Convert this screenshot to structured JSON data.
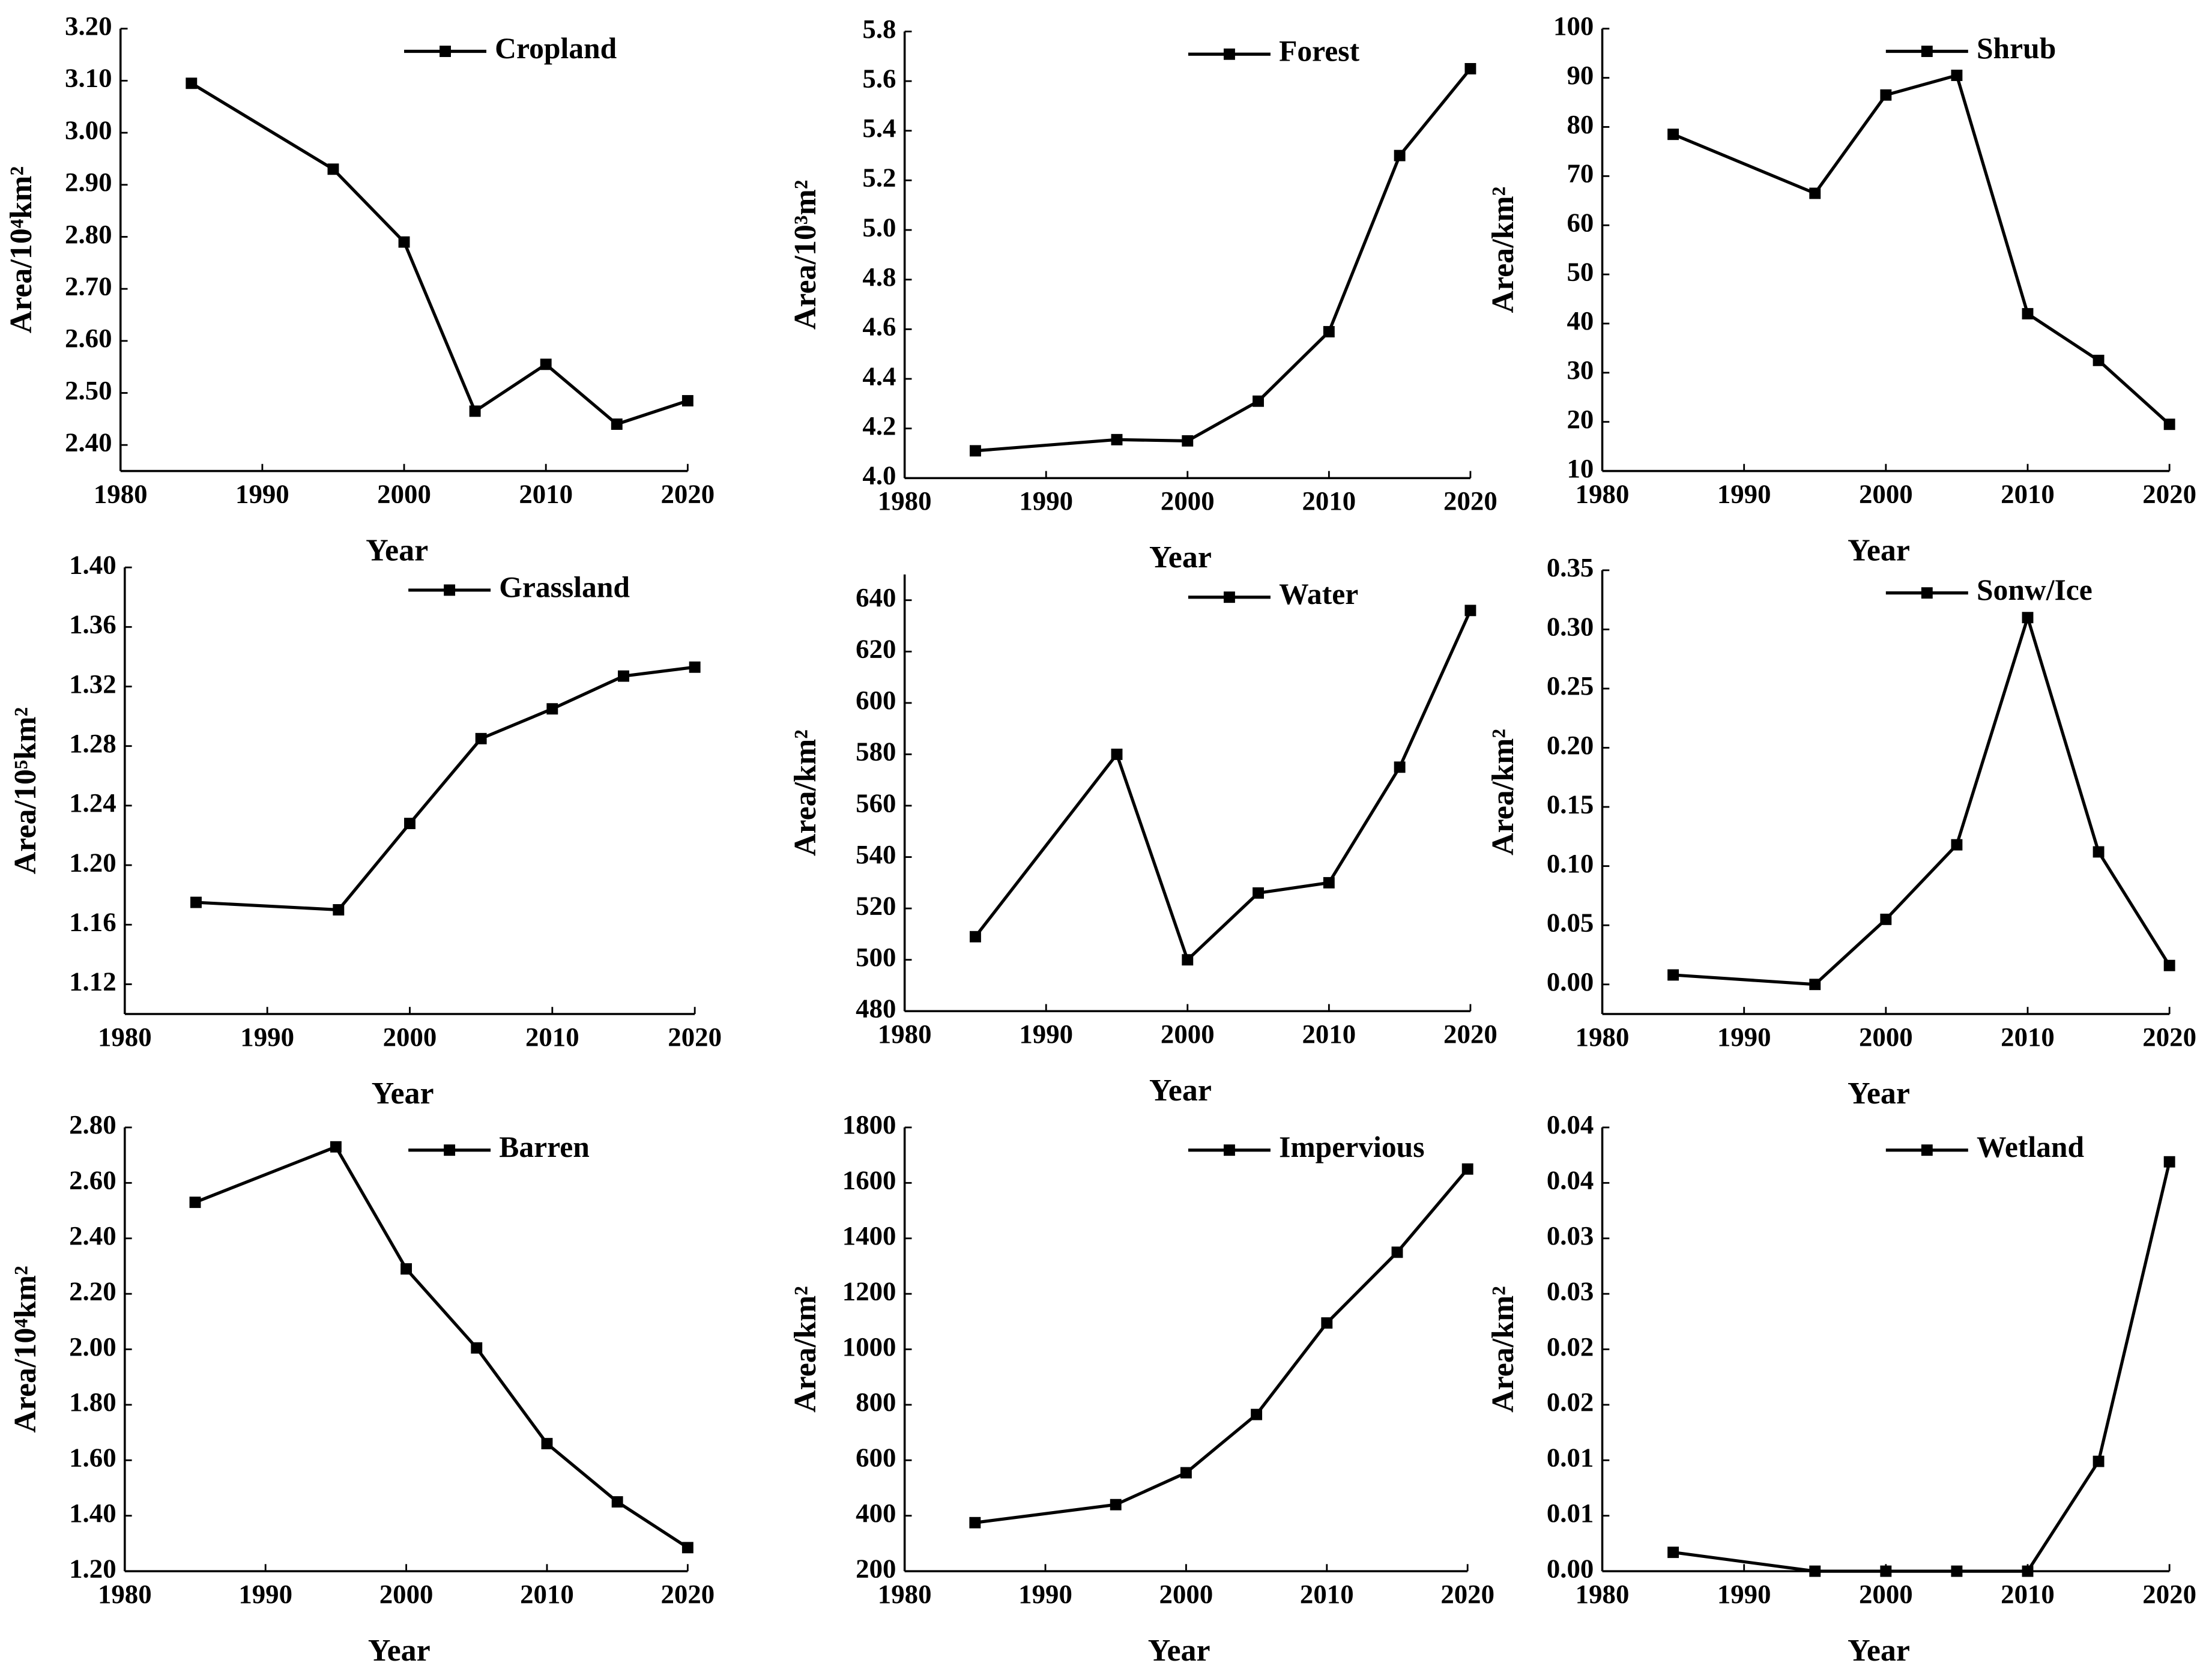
{
  "chart_data": [
    {
      "type": "line",
      "x_label": "Year",
      "y_label": "Area/10⁴km²",
      "x": [
        1985,
        1995,
        2000,
        2005,
        2010,
        2015,
        2020
      ],
      "series": [
        {
          "name": "Cropland",
          "color": "#000000",
          "values": [
            3.095,
            2.93,
            2.79,
            2.465,
            2.555,
            2.44,
            2.485
          ]
        }
      ],
      "xlim": [
        1980,
        2020
      ],
      "xticks": [
        1980,
        1990,
        2000,
        2010,
        2020
      ],
      "ylim": [
        2.35,
        3.2
      ],
      "yticks": [
        {
          "value": 2.4,
          "label": "2.40"
        },
        {
          "value": 2.5,
          "label": "2.50"
        },
        {
          "value": 2.6,
          "label": "2.60"
        },
        {
          "value": 2.7,
          "label": "2.70"
        },
        {
          "value": 2.8,
          "label": "2.80"
        },
        {
          "value": 2.9,
          "label": "2.90"
        },
        {
          "value": 3.0,
          "label": "3.00"
        },
        {
          "value": 3.1,
          "label": "3.10"
        },
        {
          "value": 3.2,
          "label": "3.20"
        }
      ]
    },
    {
      "type": "line",
      "x_label": "Year",
      "y_label": "Area/10³m²",
      "x": [
        1985,
        1995,
        2000,
        2005,
        2010,
        2015,
        2020
      ],
      "series": [
        {
          "name": "Forest",
          "color": "#000000",
          "values": [
            4.11,
            4.155,
            4.15,
            4.31,
            4.59,
            5.3,
            5.65
          ]
        }
      ],
      "xlim": [
        1980,
        2020
      ],
      "xticks": [
        1980,
        1990,
        2000,
        2010,
        2020
      ],
      "ylim": [
        4.0,
        5.8
      ],
      "yticks": [
        {
          "value": 4.0,
          "label": "4.0"
        },
        4.2,
        4.4,
        4.6,
        4.8,
        {
          "value": 5.0,
          "label": "5.0"
        },
        5.2,
        5.4,
        5.6,
        5.8
      ]
    },
    {
      "type": "line",
      "x_label": "Year",
      "y_label": "Area/km²",
      "x": [
        1985,
        1995,
        2000,
        2005,
        2010,
        2015,
        2020
      ],
      "series": [
        {
          "name": "Shrub",
          "color": "#000000",
          "values": [
            78.5,
            66.5,
            86.5,
            90.5,
            42,
            32.5,
            19.5
          ]
        }
      ],
      "xlim": [
        1980,
        2020
      ],
      "xticks": [
        1980,
        1990,
        2000,
        2010,
        2020
      ],
      "ylim": [
        10,
        100
      ],
      "yticks": [
        10,
        20,
        30,
        40,
        50,
        60,
        70,
        80,
        90,
        100
      ]
    },
    {
      "type": "line",
      "x_label": "Year",
      "y_label": "Area/10⁵km²",
      "x": [
        1985,
        1995,
        2000,
        2005,
        2010,
        2015,
        2020
      ],
      "series": [
        {
          "name": "Grassland",
          "color": "#000000",
          "values": [
            1.175,
            1.17,
            1.228,
            1.285,
            1.305,
            1.327,
            1.333
          ]
        }
      ],
      "xlim": [
        1980,
        2020
      ],
      "xticks": [
        1980,
        1990,
        2000,
        2010,
        2020
      ],
      "ylim": [
        1.1,
        1.4
      ],
      "yticks": [
        1.12,
        1.16,
        {
          "value": 1.2,
          "label": "1.20"
        },
        1.24,
        1.28,
        1.32,
        1.36,
        {
          "value": 1.4,
          "label": "1.40"
        }
      ]
    },
    {
      "type": "line",
      "x_label": "Year",
      "y_label": "Area/km²",
      "x": [
        1985,
        1995,
        2000,
        2005,
        2010,
        2015,
        2020
      ],
      "series": [
        {
          "name": "Water",
          "color": "#000000",
          "values": [
            509,
            580,
            500,
            526,
            530,
            575,
            636
          ]
        }
      ],
      "xlim": [
        1980,
        2020
      ],
      "xticks": [
        1980,
        1990,
        2000,
        2010,
        2020
      ],
      "ylim": [
        480,
        650
      ],
      "yticks": [
        480,
        500,
        520,
        540,
        560,
        580,
        600,
        620,
        640
      ]
    },
    {
      "type": "line",
      "x_label": "Year",
      "y_label": "Area/km²",
      "x": [
        1985,
        1995,
        2000,
        2005,
        2010,
        2015,
        2020
      ],
      "series": [
        {
          "name": "Sonw/Ice",
          "color": "#000000",
          "values": [
            0.008,
            0,
            0.055,
            0.118,
            0.31,
            0.112,
            0.016
          ]
        }
      ],
      "xlim": [
        1980,
        2020
      ],
      "xticks": [
        1980,
        1990,
        2000,
        2010,
        2020
      ],
      "ylim": [
        -0.025,
        0.35
      ],
      "yticks": [
        {
          "value": 0,
          "label": "0.00"
        },
        0.05,
        {
          "value": 0.1,
          "label": "0.10"
        },
        0.15,
        {
          "value": 0.2,
          "label": "0.20"
        },
        0.25,
        {
          "value": 0.3,
          "label": "0.30"
        },
        0.35
      ]
    },
    {
      "type": "line",
      "x_label": "Year",
      "y_label": "Area/10⁴km²",
      "x": [
        1985,
        1995,
        2000,
        2005,
        2010,
        2015,
        2020
      ],
      "series": [
        {
          "name": "Barren",
          "color": "#000000",
          "values": [
            2.53,
            2.73,
            2.29,
            2.005,
            1.66,
            1.45,
            1.285
          ]
        }
      ],
      "xlim": [
        1980,
        2020
      ],
      "xticks": [
        1980,
        1990,
        2000,
        2010,
        2020
      ],
      "ylim": [
        1.2,
        2.8
      ],
      "yticks": [
        {
          "value": 1.2,
          "label": "1.20"
        },
        {
          "value": 1.4,
          "label": "1.40"
        },
        {
          "value": 1.6,
          "label": "1.60"
        },
        {
          "value": 1.8,
          "label": "1.80"
        },
        {
          "value": 2.0,
          "label": "2.00"
        },
        {
          "value": 2.2,
          "label": "2.20"
        },
        {
          "value": 2.4,
          "label": "2.40"
        },
        {
          "value": 2.6,
          "label": "2.60"
        },
        {
          "value": 2.8,
          "label": "2.80"
        }
      ]
    },
    {
      "type": "line",
      "x_label": "Year",
      "y_label": "Area/km²",
      "x": [
        1985,
        1995,
        2000,
        2005,
        2010,
        2015,
        2020
      ],
      "series": [
        {
          "name": "Impervious",
          "color": "#000000",
          "values": [
            375,
            440,
            555,
            765,
            1095,
            1350,
            1650
          ]
        }
      ],
      "xlim": [
        1980,
        2020
      ],
      "xticks": [
        1980,
        1990,
        2000,
        2010,
        2020
      ],
      "ylim": [
        200,
        1800
      ],
      "yticks": [
        200,
        400,
        600,
        800,
        1000,
        1200,
        1400,
        1600,
        1800
      ]
    },
    {
      "type": "line",
      "x_label": "Year",
      "y_label": "Area/km²",
      "x": [
        1985,
        1995,
        2000,
        2005,
        2010,
        2015,
        2020
      ],
      "series": [
        {
          "name": "Wetland",
          "color": "#000000",
          "values": [
            0.0017,
            0,
            0,
            0,
            0,
            0.0099,
            0.0369
          ]
        }
      ],
      "xlim": [
        1980,
        2020
      ],
      "xticks": [
        1980,
        1990,
        2000,
        2010,
        2020
      ],
      "ylim": [
        0,
        0.04
      ],
      "yticks": [
        {
          "value": 0,
          "label": "0.00"
        },
        {
          "value": 0.005,
          "label": "0.01"
        },
        {
          "value": 0.01,
          "label": "0.01"
        },
        {
          "value": 0.015,
          "label": "0.02"
        },
        {
          "value": 0.02,
          "label": "0.02"
        },
        {
          "value": 0.025,
          "label": "0.03"
        },
        {
          "value": 0.03,
          "label": "0.03"
        },
        {
          "value": 0.035,
          "label": "0.04"
        },
        {
          "value": 0.04,
          "label": "0.04"
        }
      ]
    }
  ]
}
